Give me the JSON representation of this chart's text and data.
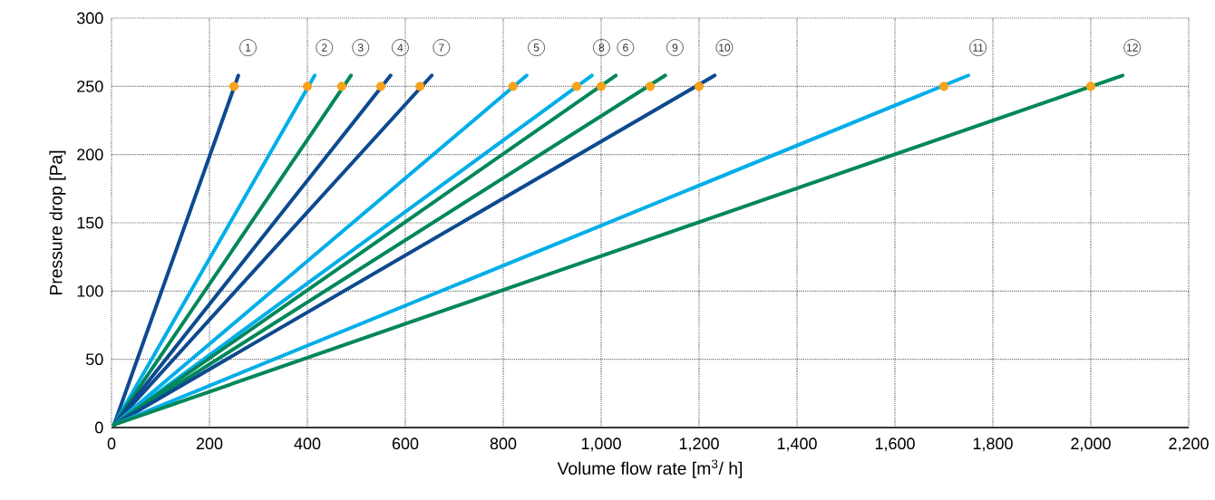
{
  "chart_data": {
    "type": "line",
    "xlabel": "Volume flow rate [m$^{3}$/ h]",
    "ylabel": "Pressure drop [Pa]",
    "xlim": [
      0,
      2200
    ],
    "ylim": [
      0,
      300
    ],
    "xticks": [
      0,
      200,
      400,
      600,
      800,
      {
        "value": 1000,
        "label": "1,000"
      },
      {
        "value": 1200,
        "label": "1,200"
      },
      {
        "value": 1400,
        "label": "1,400"
      },
      {
        "value": 1600,
        "label": "1,600"
      },
      {
        "value": 1800,
        "label": "1,800"
      },
      {
        "value": 2000,
        "label": "2,000"
      },
      {
        "value": 2200,
        "label": "2,200"
      }
    ],
    "yticks": [
      0,
      50,
      100,
      150,
      200,
      250,
      300
    ],
    "grid": true,
    "series": [
      {
        "name": "1",
        "color": "#0d4a8f",
        "x": [
          5,
          259
        ],
        "values": [
          2,
          258
        ]
      },
      {
        "name": "2",
        "color": "#00aee8",
        "x": [
          5,
          415
        ],
        "values": [
          2,
          258
        ]
      },
      {
        "name": "3",
        "color": "#00875a",
        "x": [
          5,
          489
        ],
        "values": [
          2,
          258
        ]
      },
      {
        "name": "4",
        "color": "#0d4a8f",
        "x": [
          5,
          570
        ],
        "values": [
          2,
          258
        ]
      },
      {
        "name": "7",
        "color": "#0d4a8f",
        "x": [
          5,
          654
        ],
        "values": [
          2,
          258
        ]
      },
      {
        "name": "5",
        "color": "#00aee8",
        "x": [
          5,
          848
        ],
        "values": [
          2,
          258
        ]
      },
      {
        "name": "8",
        "color": "#00aee8",
        "x": [
          5,
          981
        ],
        "values": [
          2,
          258
        ]
      },
      {
        "name": "6",
        "color": "#00875a",
        "x": [
          5,
          1030
        ],
        "values": [
          2,
          258
        ]
      },
      {
        "name": "9",
        "color": "#00875a",
        "x": [
          5,
          1131
        ],
        "values": [
          2,
          258
        ]
      },
      {
        "name": "10",
        "color": "#0d4a8f",
        "x": [
          5,
          1232
        ],
        "values": [
          2,
          258
        ]
      },
      {
        "name": "11",
        "color": "#00aee8",
        "x": [
          5,
          1750
        ],
        "values": [
          2,
          258
        ]
      },
      {
        "name": "12",
        "color": "#00875a",
        "x": [
          5,
          2065
        ],
        "values": [
          2,
          258
        ]
      },
      {
        "type": "scatter",
        "marker": "circle",
        "color": "#f7a21b",
        "x": [
          250,
          400,
          470,
          550,
          630,
          820,
          950,
          1000,
          1100,
          1200,
          1700,
          2000
        ],
        "values": [
          250,
          250,
          250,
          250,
          250,
          250,
          250,
          250,
          250,
          250,
          250,
          250
        ]
      }
    ]
  }
}
